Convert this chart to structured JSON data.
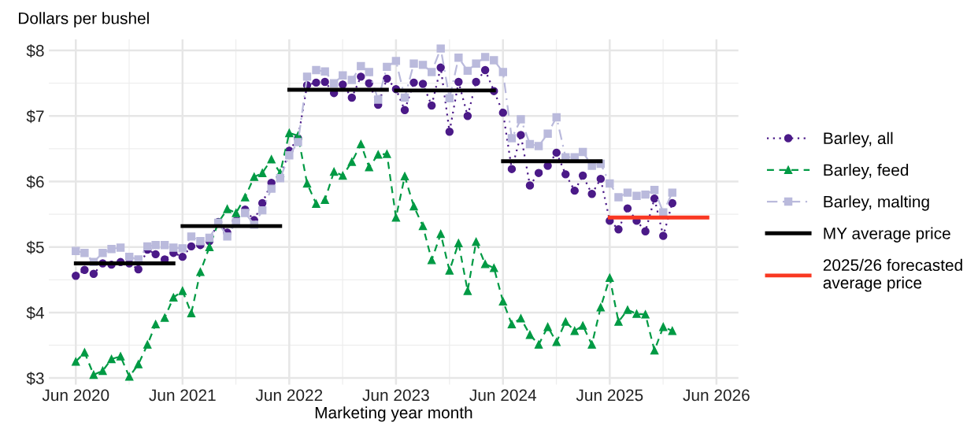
{
  "chart_data": {
    "type": "line",
    "ylabel": "Dollars per bushel",
    "xlabel": "Marketing year month",
    "x": [
      "2020-06",
      "2020-07",
      "2020-08",
      "2020-09",
      "2020-10",
      "2020-11",
      "2020-12",
      "2021-01",
      "2021-02",
      "2021-03",
      "2021-04",
      "2021-05",
      "2021-06",
      "2021-07",
      "2021-08",
      "2021-09",
      "2021-10",
      "2021-11",
      "2021-12",
      "2022-01",
      "2022-02",
      "2022-03",
      "2022-04",
      "2022-05",
      "2022-06",
      "2022-07",
      "2022-08",
      "2022-09",
      "2022-10",
      "2022-11",
      "2022-12",
      "2023-01",
      "2023-02",
      "2023-03",
      "2023-04",
      "2023-05",
      "2023-06",
      "2023-07",
      "2023-08",
      "2023-09",
      "2023-10",
      "2023-11",
      "2023-12",
      "2024-01",
      "2024-02",
      "2024-03",
      "2024-04",
      "2024-05",
      "2024-06",
      "2024-07",
      "2024-08",
      "2024-09",
      "2024-10",
      "2024-11",
      "2024-12",
      "2025-01",
      "2025-02",
      "2025-03",
      "2025-04",
      "2025-05",
      "2025-06",
      "2025-07",
      "2025-08",
      "2025-09",
      "2025-10",
      "2025-11",
      "2025-12",
      "2026-01"
    ],
    "series": [
      {
        "name": "Barley, all",
        "color": "#4b1a88",
        "marker": "circle",
        "line_style": "dotted",
        "values": [
          4.56,
          4.65,
          4.59,
          4.75,
          4.73,
          4.77,
          4.75,
          4.66,
          4.96,
          4.89,
          4.81,
          4.91,
          4.85,
          5.01,
          5.03,
          5.09,
          5.38,
          5.22,
          5.4,
          5.57,
          5.41,
          5.67,
          5.98,
          6.06,
          6.47,
          6.66,
          7.47,
          7.51,
          7.52,
          7.35,
          7.48,
          7.28,
          7.6,
          7.5,
          7.17,
          7.57,
          7.41,
          7.09,
          7.51,
          7.49,
          7.16,
          7.74,
          6.76,
          7.52,
          7.0,
          7.52,
          7.7,
          7.38,
          7.05,
          6.19,
          6.71,
          5.94,
          6.13,
          6.24,
          6.44,
          6.11,
          5.86,
          6.09,
          5.81,
          6.04,
          5.4,
          5.27,
          5.59,
          5.4,
          5.24,
          5.74,
          5.17,
          5.67
        ]
      },
      {
        "name": "Barley, feed",
        "color": "#009a44",
        "marker": "triangle",
        "line_style": "dashed",
        "values": [
          3.25,
          3.39,
          3.05,
          3.11,
          3.29,
          3.33,
          3.02,
          3.21,
          3.51,
          3.82,
          3.92,
          4.23,
          4.33,
          3.99,
          4.62,
          5.0,
          5.37,
          5.58,
          5.52,
          5.76,
          6.07,
          6.13,
          6.34,
          6.13,
          6.74,
          6.7,
          5.97,
          5.66,
          5.72,
          6.15,
          6.09,
          6.3,
          6.57,
          6.22,
          6.41,
          6.42,
          5.45,
          6.08,
          5.62,
          5.32,
          4.8,
          5.2,
          4.64,
          5.06,
          4.33,
          5.08,
          4.74,
          4.68,
          4.17,
          3.82,
          3.91,
          3.66,
          3.51,
          3.78,
          3.55,
          3.86,
          3.72,
          3.8,
          3.51,
          4.08,
          4.53,
          3.86,
          4.04,
          3.98,
          3.97,
          3.42,
          3.78,
          3.72
        ]
      },
      {
        "name": "Barley, malting",
        "color": "#babadc",
        "marker": "square",
        "line_style": "dashdot",
        "values": [
          4.94,
          4.91,
          4.77,
          4.91,
          4.97,
          4.99,
          4.85,
          4.81,
          5.01,
          5.03,
          5.03,
          4.99,
          4.98,
          5.16,
          5.09,
          5.14,
          5.37,
          5.16,
          5.38,
          5.52,
          5.34,
          5.56,
          5.89,
          6.05,
          6.4,
          6.6,
          7.6,
          7.7,
          7.68,
          7.5,
          7.62,
          7.55,
          7.76,
          7.67,
          7.25,
          7.75,
          7.84,
          7.28,
          7.8,
          7.78,
          7.67,
          8.03,
          7.27,
          7.89,
          7.69,
          7.8,
          7.9,
          7.85,
          7.67,
          6.66,
          6.95,
          6.57,
          6.54,
          6.73,
          6.98,
          6.37,
          6.37,
          6.45,
          6.24,
          6.27,
          5.97,
          5.76,
          5.83,
          5.78,
          5.8,
          5.87,
          5.53,
          5.83
        ]
      },
      {
        "name": "MY average price",
        "color": "#000000",
        "marker": "none",
        "line_style": "solid",
        "x": [
          "2020-06",
          "2021-05"
        ],
        "values": [
          4.75,
          4.75
        ]
      },
      {
        "color": "#000000",
        "marker": "none",
        "line_style": "solid",
        "x": [
          "2021-06",
          "2022-05"
        ],
        "values": [
          5.32,
          5.32
        ]
      },
      {
        "color": "#000000",
        "marker": "none",
        "line_style": "solid",
        "x": [
          "2022-06",
          "2023-05"
        ],
        "values": [
          7.4,
          7.4
        ]
      },
      {
        "color": "#000000",
        "marker": "none",
        "line_style": "solid",
        "x": [
          "2023-06",
          "2024-05"
        ],
        "values": [
          7.39,
          7.39
        ]
      },
      {
        "color": "#000000",
        "marker": "none",
        "line_style": "solid",
        "x": [
          "2024-06",
          "2025-05"
        ],
        "values": [
          6.31,
          6.31
        ]
      },
      {
        "name": "2025/26 forecasted average price",
        "color": "#f93822",
        "marker": "none",
        "line_style": "solid",
        "x": [
          "2025-06",
          "2026-05"
        ],
        "values": [
          5.45,
          5.45
        ]
      }
    ],
    "xlim": [
      "2020-03-01",
      "2026-08-15"
    ],
    "xticks": [
      {
        "value": "2020-06",
        "label": "Jun 2020"
      },
      {
        "value": "2021-06",
        "label": "Jun 2021"
      },
      {
        "value": "2022-06",
        "label": "Jun 2022"
      },
      {
        "value": "2023-06",
        "label": "Jun 2023"
      },
      {
        "value": "2024-06",
        "label": "Jun 2024"
      },
      {
        "value": "2025-06",
        "label": "Jun 2025"
      },
      {
        "value": "2026-06",
        "label": "Jun 2026"
      }
    ],
    "ylim": [
      2.9,
      8.17
    ],
    "yticks": [
      {
        "value": 3,
        "label": "$3"
      },
      {
        "value": 4,
        "label": "$4"
      },
      {
        "value": 5,
        "label": "$5"
      },
      {
        "value": 6,
        "label": "$6"
      },
      {
        "value": 7,
        "label": "$7"
      },
      {
        "value": 8,
        "label": "$8"
      }
    ],
    "grid": true,
    "legend": "right"
  }
}
